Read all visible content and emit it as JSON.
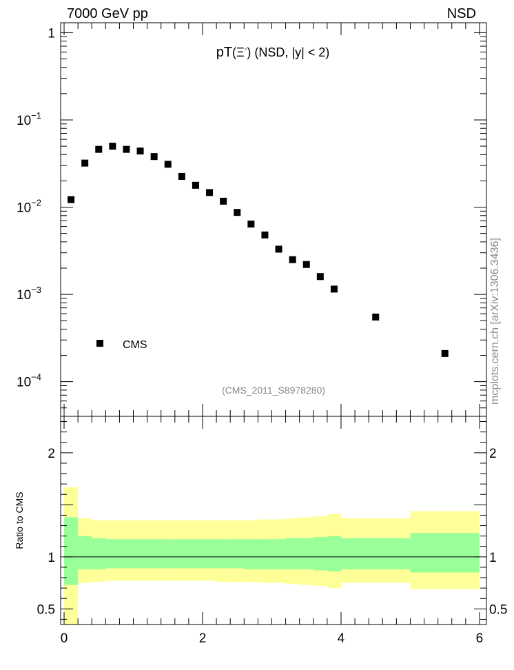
{
  "header": {
    "left_label": "7000 GeV pp",
    "right_label": "NSD"
  },
  "side_label": "mcplots.cern.ch [arXiv:1306.3436]",
  "chart_data": [
    {
      "panel": "main",
      "type": "scatter",
      "title_prefix": "pT",
      "title_particle": "(Ξ",
      "title_sup": "-",
      "title_suffix": ") (NSD, |y| < 2)",
      "analysis_label": "(CMS_2011_S8978280)",
      "x_range": [
        -0.05,
        6.1
      ],
      "y_range": [
        4e-05,
        1.3
      ],
      "y_scale": "log",
      "y_ticks": [
        {
          "base": "1",
          "exp": "",
          "value": 1
        },
        {
          "base": "10",
          "exp": "−1",
          "value": 0.1
        },
        {
          "base": "10",
          "exp": "−2",
          "value": 0.01
        },
        {
          "base": "10",
          "exp": "−3",
          "value": 0.001
        },
        {
          "base": "10",
          "exp": "−4",
          "value": 0.0001
        }
      ],
      "legend": {
        "position": "lower-left",
        "entries": [
          "CMS"
        ]
      },
      "series": [
        {
          "name": "CMS",
          "marker": "square",
          "color": "#000000",
          "x": [
            0.1,
            0.3,
            0.5,
            0.7,
            0.9,
            1.1,
            1.3,
            1.5,
            1.7,
            1.9,
            2.1,
            2.3,
            2.5,
            2.7,
            2.9,
            3.1,
            3.3,
            3.5,
            3.7,
            3.9,
            4.5,
            5.5
          ],
          "y": [
            0.0122,
            0.032,
            0.046,
            0.05,
            0.046,
            0.044,
            0.038,
            0.031,
            0.0225,
            0.0178,
            0.0147,
            0.0117,
            0.0087,
            0.0064,
            0.0048,
            0.0033,
            0.0025,
            0.0022,
            0.0016,
            0.00115,
            0.00055,
            0.00021
          ]
        }
      ]
    },
    {
      "panel": "ratio",
      "type": "area",
      "ylabel": "Ratio to CMS",
      "x_range": [
        -0.05,
        6.1
      ],
      "y_range": [
        0.35,
        2.35
      ],
      "x_ticks": [
        0,
        2,
        4,
        6
      ],
      "y_ticks": [
        0.5,
        1,
        2
      ],
      "reference_line": 1,
      "bands": {
        "x_edges": [
          0,
          0.2,
          0.4,
          0.6,
          0.8,
          1.0,
          1.2,
          1.4,
          1.6,
          1.8,
          2.0,
          2.2,
          2.4,
          2.6,
          2.8,
          3.0,
          3.2,
          3.4,
          3.6,
          3.8,
          4.0,
          5.0,
          6.0
        ],
        "stat": {
          "color": "#99ff99",
          "low": [
            0.73,
            0.88,
            0.88,
            0.89,
            0.89,
            0.89,
            0.89,
            0.89,
            0.89,
            0.89,
            0.89,
            0.89,
            0.89,
            0.88,
            0.88,
            0.88,
            0.88,
            0.88,
            0.87,
            0.86,
            0.88,
            0.85
          ],
          "high": [
            1.38,
            1.2,
            1.18,
            1.17,
            1.17,
            1.17,
            1.17,
            1.17,
            1.17,
            1.17,
            1.17,
            1.17,
            1.17,
            1.17,
            1.17,
            1.17,
            1.18,
            1.18,
            1.19,
            1.2,
            1.18,
            1.23
          ]
        },
        "total": {
          "color": "#ffff99",
          "low": [
            0.35,
            0.75,
            0.76,
            0.77,
            0.77,
            0.77,
            0.77,
            0.77,
            0.77,
            0.77,
            0.77,
            0.76,
            0.76,
            0.76,
            0.75,
            0.75,
            0.74,
            0.73,
            0.72,
            0.7,
            0.75,
            0.69
          ],
          "high": [
            1.67,
            1.37,
            1.35,
            1.35,
            1.35,
            1.35,
            1.35,
            1.35,
            1.35,
            1.35,
            1.35,
            1.35,
            1.35,
            1.35,
            1.36,
            1.36,
            1.37,
            1.38,
            1.39,
            1.41,
            1.37,
            1.44
          ]
        }
      }
    }
  ]
}
